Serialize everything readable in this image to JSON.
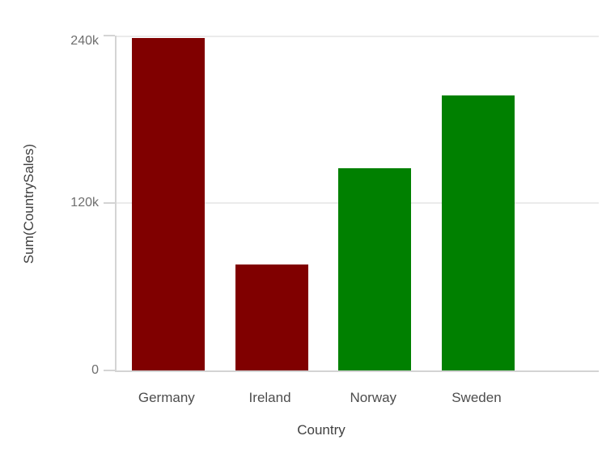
{
  "chart_data": {
    "type": "bar",
    "title": "",
    "categories": [
      "Germany",
      "Ireland",
      "Norway",
      "Sweden"
    ],
    "values": [
      238000,
      76000,
      145000,
      197000
    ],
    "bar_colors": [
      "#800000",
      "#800000",
      "#008000",
      "#008000"
    ],
    "xlabel": "Country",
    "ylabel": "Sum(CountrySales)",
    "ylim": [
      0,
      240000
    ],
    "yticks": [
      {
        "value": 0,
        "label": "0"
      },
      {
        "value": 120000,
        "label": "120k"
      },
      {
        "value": 240000,
        "label": "240k"
      }
    ],
    "grid": "horizontal",
    "legend": "none"
  },
  "colors": {
    "bar_negative": "#800000",
    "bar_positive": "#008000",
    "gridline": "#ebebeb",
    "axis_line": "#d4d4d4",
    "tick_label": "#6e6e6e",
    "category_label": "#4d4d4d",
    "axis_title": "#404040",
    "background": "#ffffff"
  }
}
